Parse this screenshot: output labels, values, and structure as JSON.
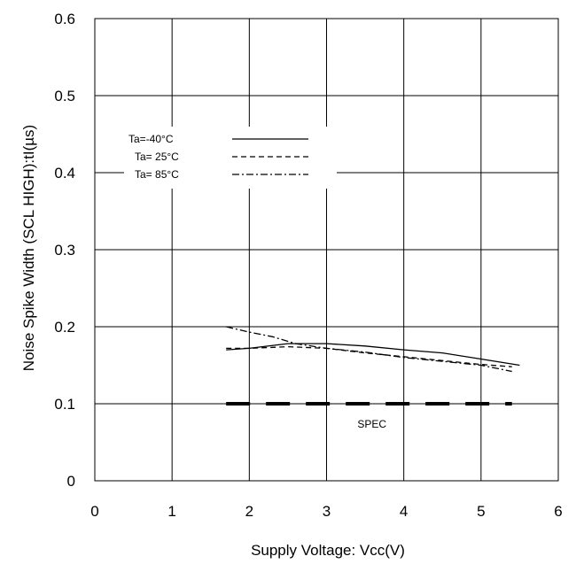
{
  "chart_data": {
    "type": "line",
    "xlabel": "Supply Voltage: Vcc(V)",
    "ylabel": "Noise Spike Width (SCL HIGH):tI(µs)",
    "xlim": [
      0,
      6
    ],
    "ylim": [
      0,
      0.6
    ],
    "x_ticks": [
      "0",
      "1",
      "2",
      "3",
      "4",
      "5",
      "6"
    ],
    "y_ticks": [
      "0",
      "0.1",
      "0.2",
      "0.3",
      "0.4",
      "0.5",
      "0.6"
    ],
    "grid": true,
    "legend_position": "top-left",
    "series": [
      {
        "name": "Ta=-40°C",
        "line_style": "solid",
        "x": [
          1.7,
          2.0,
          2.5,
          3.0,
          3.5,
          4.0,
          4.5,
          5.0,
          5.5
        ],
        "y": [
          0.17,
          0.172,
          0.178,
          0.178,
          0.175,
          0.17,
          0.166,
          0.158,
          0.15
        ]
      },
      {
        "name": "Ta= 25°C",
        "line_style": "dashed",
        "x": [
          1.7,
          2.0,
          2.5,
          3.0,
          3.5,
          4.0,
          4.5,
          5.0,
          5.4
        ],
        "y": [
          0.172,
          0.172,
          0.174,
          0.172,
          0.166,
          0.161,
          0.156,
          0.151,
          0.148
        ]
      },
      {
        "name": "Ta= 85°C",
        "line_style": "dashdot",
        "x": [
          1.7,
          2.0,
          2.3,
          2.6,
          3.0,
          3.5,
          4.0,
          4.5,
          5.0,
          5.4
        ],
        "y": [
          0.2,
          0.193,
          0.187,
          0.178,
          0.172,
          0.167,
          0.16,
          0.155,
          0.15,
          0.142
        ]
      }
    ],
    "spec": {
      "label": "SPEC",
      "y": 0.1,
      "x_start": 1.7,
      "x_end": 5.4
    }
  }
}
